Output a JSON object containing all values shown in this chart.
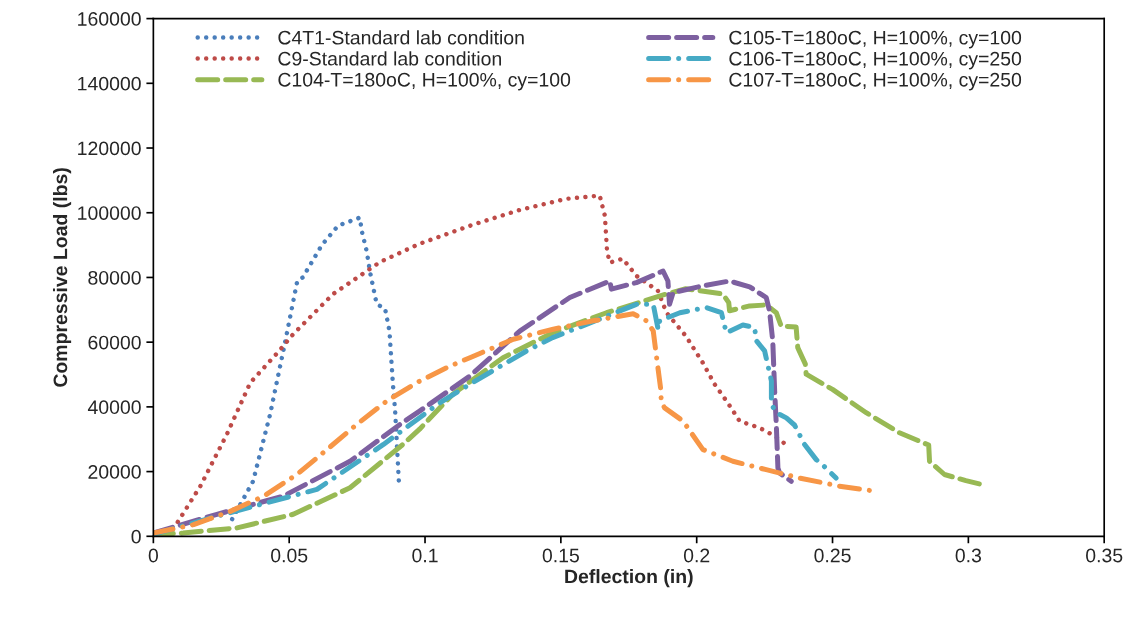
{
  "chart_data": {
    "type": "line",
    "xlabel": "Deflection (in)",
    "ylabel": "Compressive Load (lbs)",
    "xlim": [
      0,
      0.35
    ],
    "xticks": [
      0,
      0.05,
      0.1,
      0.15,
      0.2,
      0.25,
      0.3,
      0.35
    ],
    "ylim": [
      0,
      160000
    ],
    "yticks": [
      0,
      20000,
      40000,
      60000,
      80000,
      100000,
      120000,
      140000,
      160000
    ],
    "grid": false,
    "legend": "top",
    "marker": "none",
    "series": [
      {
        "name": "C4T1-Standard lab condition",
        "color": "#4a7ebb",
        "line_style": "dotted",
        "x": [
          0.029,
          0.0367,
          0.043,
          0.0485,
          0.053,
          0.055,
          0.062,
          0.068,
          0.076,
          0.0767,
          0.0785,
          0.0798,
          0.0822,
          0.0853,
          0.0869,
          0.0881,
          0.089,
          0.0904
        ],
        "values": [
          5300,
          17000,
          37800,
          60000,
          79000,
          80000,
          90000,
          96000,
          98500,
          94400,
          88200,
          81500,
          71800,
          70300,
          63500,
          48000,
          38700,
          16400
        ]
      },
      {
        "name": "C9-Standard lab condition",
        "color": "#be4b48",
        "line_style": "dotted",
        "x": [
          0.0044,
          0.008,
          0.0173,
          0.0271,
          0.0357,
          0.046,
          0.0515,
          0.0662,
          0.0835,
          0.098,
          0.1176,
          0.135,
          0.152,
          0.1643,
          0.1662,
          0.167,
          0.168,
          0.1728,
          0.1778,
          0.1857,
          0.1889,
          0.196,
          0.2022,
          0.2066,
          0.2114,
          0.2158,
          0.2232,
          0.2287,
          0.232
        ],
        "values": [
          1000,
          3100,
          15500,
          31600,
          47500,
          57000,
          62500,
          74900,
          84800,
          90400,
          96300,
          100900,
          104300,
          105300,
          99100,
          88200,
          84600,
          85800,
          80500,
          75900,
          69100,
          61900,
          53700,
          47000,
          41300,
          35600,
          33500,
          31000,
          28900
        ]
      },
      {
        "name": "C104-T=180oC, H=100%, cy=100",
        "color": "#98b954",
        "line_style": "dashed",
        "x": [
          0.0,
          0.011,
          0.0308,
          0.0515,
          0.0724,
          0.092,
          0.098,
          0.1103,
          0.1287,
          0.147,
          0.1668,
          0.1889,
          0.196,
          0.201,
          0.2096,
          0.2118,
          0.2121,
          0.2195,
          0.2256,
          0.2293,
          0.2311,
          0.2366,
          0.2372,
          0.24,
          0.2403,
          0.25,
          0.2624,
          0.2746,
          0.2854,
          0.2857,
          0.2912,
          0.2991,
          0.3059
        ],
        "values": [
          500,
          1000,
          2600,
          6800,
          15000,
          28500,
          33100,
          44000,
          55200,
          62900,
          69100,
          74900,
          76500,
          75900,
          74900,
          72200,
          69700,
          71200,
          71500,
          69100,
          65000,
          64700,
          58300,
          53200,
          50100,
          45400,
          38200,
          32000,
          28200,
          23200,
          19100,
          17200,
          15800
        ]
      },
      {
        "name": "C105-T=180oC, H=100%, cy=100",
        "color": "#7d60a0",
        "line_style": "dashed",
        "x": [
          0.0,
          0.0234,
          0.0478,
          0.0724,
          0.0908,
          0.098,
          0.1165,
          0.135,
          0.1533,
          0.168,
          0.1686,
          0.1778,
          0.1876,
          0.1894,
          0.19,
          0.1913,
          0.2022,
          0.2121,
          0.2195,
          0.2256,
          0.2268,
          0.228,
          0.2287,
          0.2293,
          0.2299,
          0.2305,
          0.2348
        ],
        "values": [
          1000,
          6800,
          12400,
          23200,
          34600,
          38700,
          49500,
          63500,
          73800,
          78900,
          76400,
          78400,
          82000,
          78900,
          71700,
          75300,
          77400,
          78900,
          77100,
          73800,
          69700,
          60400,
          44900,
          34600,
          21100,
          19600,
          17000
        ]
      },
      {
        "name": "C106-T=180oC, H=100%, cy=250",
        "color": "#46aac5",
        "line_style": "dashdot",
        "x": [
          0.0,
          0.0234,
          0.0393,
          0.0602,
          0.0847,
          0.1055,
          0.1165,
          0.1374,
          0.147,
          0.1594,
          0.1778,
          0.184,
          0.1858,
          0.1864,
          0.1938,
          0.2036,
          0.2091,
          0.2109,
          0.217,
          0.2213,
          0.222,
          0.225,
          0.2275,
          0.2275,
          0.2293,
          0.233,
          0.236,
          0.2397,
          0.244,
          0.2476,
          0.2513
        ],
        "values": [
          600,
          6200,
          9800,
          14500,
          28400,
          41300,
          47000,
          57300,
          61400,
          65500,
          71700,
          71700,
          64000,
          66600,
          69100,
          70700,
          69100,
          62900,
          65300,
          64500,
          60400,
          57300,
          48000,
          40800,
          38200,
          36600,
          34400,
          28400,
          23700,
          21100,
          18000
        ]
      },
      {
        "name": "C107-T=180oC, H=100%, cy=250",
        "color": "#f79646",
        "line_style": "dashdot",
        "x": [
          0.0,
          0.0148,
          0.0283,
          0.0406,
          0.0528,
          0.0639,
          0.0749,
          0.0859,
          0.097,
          0.1092,
          0.1165,
          0.1325,
          0.1472,
          0.1619,
          0.1766,
          0.1815,
          0.184,
          0.1854,
          0.1867,
          0.187,
          0.1882,
          0.195,
          0.2023,
          0.2133,
          0.2256,
          0.2379,
          0.2526,
          0.266
        ],
        "values": [
          1000,
          3600,
          7700,
          12400,
          19100,
          26800,
          34600,
          41800,
          47500,
          52600,
          55200,
          60900,
          64000,
          66600,
          68800,
          66600,
          63500,
          54200,
          45900,
          41300,
          39700,
          35600,
          26800,
          23200,
          20600,
          18000,
          15500,
          13900
        ]
      }
    ]
  }
}
